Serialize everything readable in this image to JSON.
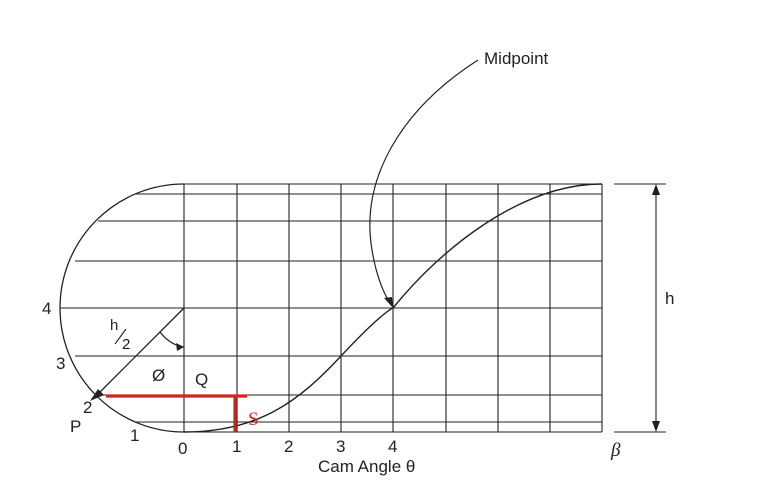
{
  "diagram": {
    "callout_label": "Midpoint",
    "height_label": "h",
    "beta_label": "β",
    "x_axis_label": "Cam Angle θ",
    "x_ticks": [
      "0",
      "1",
      "2",
      "3",
      "4"
    ],
    "circle_point_numbers": [
      "1",
      "2",
      "3",
      "4"
    ],
    "point_p_label": "P",
    "point_q_label": "Q",
    "angle_label": "Ø",
    "half_height_numerator": "h",
    "half_height_denominator": "2",
    "s_label": "S",
    "colors": {
      "line": "#222222",
      "highlight": "#d0261e"
    }
  }
}
